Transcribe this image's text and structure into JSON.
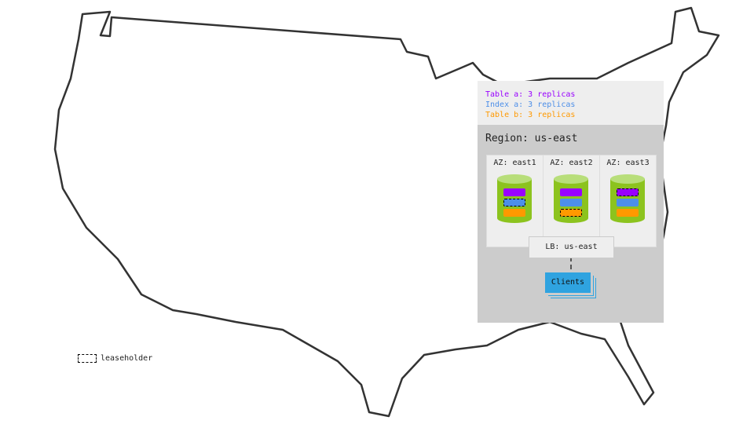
{
  "replicas": [
    {
      "label": "Table a: 3 replicas",
      "color": "#9900ff"
    },
    {
      "label": "Index a: 3 replicas",
      "color": "#4d8fe8"
    },
    {
      "label": "Table b: 3 replicas",
      "color": "#ff9900"
    }
  ],
  "region": {
    "label": "Region: us-east"
  },
  "azs": [
    {
      "label": "AZ: east1",
      "leaseholder": 1
    },
    {
      "label": "AZ: east2",
      "leaseholder": 2
    },
    {
      "label": "AZ: east3",
      "leaseholder": 0
    }
  ],
  "lb": {
    "label": "LB: us-east"
  },
  "clients": {
    "label": "Clients"
  },
  "legend": {
    "label": "leaseholder"
  },
  "colors": {
    "cylinder": "#8cc31e",
    "cylinder_top": "#b8de7a",
    "region_bg": "#cccccc"
  }
}
